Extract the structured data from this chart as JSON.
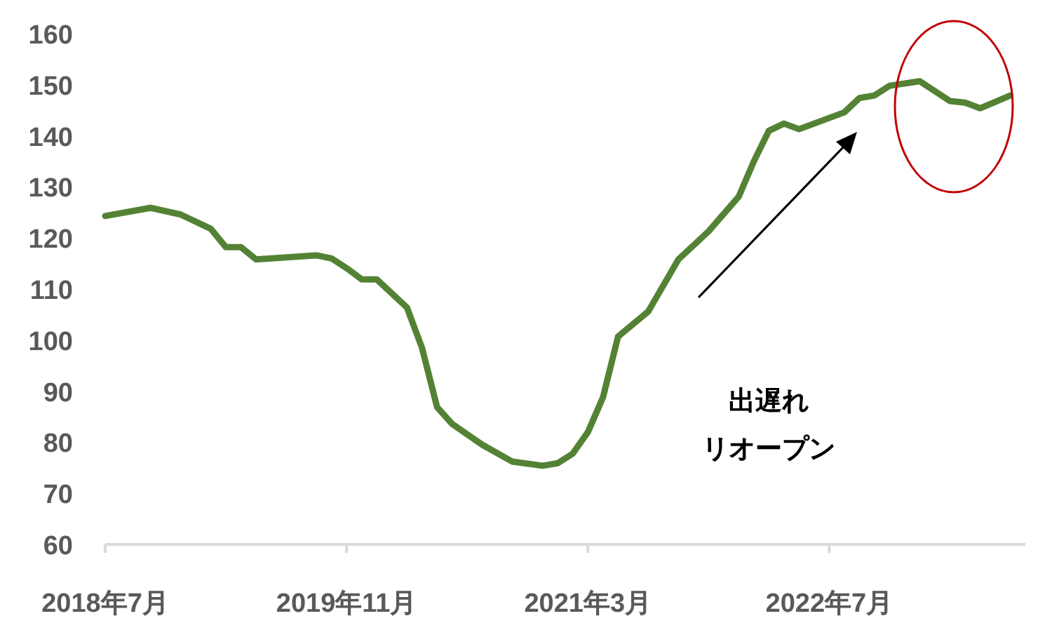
{
  "chart_data": {
    "type": "line",
    "grid": false,
    "marker": "none",
    "line_style": "solid",
    "xlim": [
      "2018-07",
      "2023-08"
    ],
    "xticks": [
      {
        "value": "2018-07",
        "label": "2018年7月"
      },
      {
        "value": "2019-11",
        "label": "2019年11月"
      },
      {
        "value": "2021-03",
        "label": "2021年3月"
      },
      {
        "value": "2022-07",
        "label": "2022年7月"
      }
    ],
    "ylim": [
      60,
      160
    ],
    "yticks": [
      60,
      70,
      80,
      90,
      100,
      110,
      120,
      130,
      140,
      150,
      160
    ],
    "annotations": [
      "出遅れ",
      "リオープン"
    ],
    "series": [
      {
        "color": "#548235",
        "x": [
          "2018-07",
          "2018-10",
          "2018-12",
          "2019-02",
          "2019-03",
          "2019-04",
          "2019-05",
          "2019-09",
          "2019-10",
          "2019-11",
          "2019-12",
          "2020-01",
          "2020-03",
          "2020-04",
          "2020-05",
          "2020-06",
          "2020-08",
          "2020-10",
          "2020-12",
          "2021-01",
          "2021-02",
          "2021-03",
          "2021-04",
          "2021-05",
          "2021-07",
          "2021-09",
          "2021-11",
          "2022-01",
          "2022-02",
          "2022-03",
          "2022-04",
          "2022-05",
          "2022-06",
          "2022-08",
          "2022-09",
          "2022-10",
          "2022-11",
          "2023-01",
          "2023-03",
          "2023-04",
          "2023-05",
          "2023-07"
        ],
        "values": [
          124.3,
          125.9,
          124.6,
          121.8,
          118.2,
          118.2,
          115.8,
          116.6,
          116.0,
          114.1,
          111.9,
          111.9,
          106.4,
          98.5,
          86.9,
          83.6,
          79.5,
          76.2,
          75.4,
          75.9,
          77.8,
          82.0,
          88.8,
          100.7,
          105.6,
          115.8,
          121.3,
          128.1,
          135,
          141,
          142.4,
          141.3,
          142.4,
          144.6,
          147.4,
          147.9,
          149.8,
          150.7,
          146.8,
          146.5,
          145.4,
          147.9
        ]
      }
    ]
  }
}
